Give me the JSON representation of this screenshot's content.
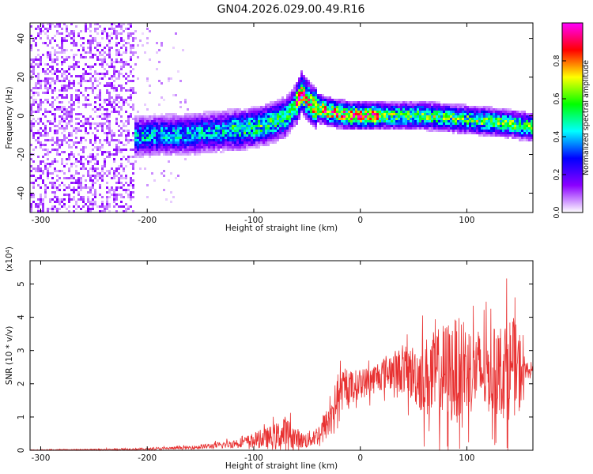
{
  "figure": {
    "title": "GN04.2026.029.00.49.R16"
  },
  "chart_data": [
    {
      "type": "heatmap",
      "title": "GN04.2026.029.00.49.R16",
      "xlabel": "Height of straight line (km)",
      "ylabel": "Frequency (Hz)",
      "xlim": [
        -310,
        162
      ],
      "ylim": [
        -50,
        48
      ],
      "x_ticks": [
        -300,
        -200,
        -100,
        0,
        100
      ],
      "x_tick_labels": [
        "-300",
        "-200",
        "-100",
        "0",
        "100"
      ],
      "y_ticks": [
        -40,
        -20,
        0,
        20,
        40
      ],
      "y_tick_labels": [
        "-40",
        "-20",
        "0",
        "20",
        "40"
      ],
      "colorbar": {
        "label": "Normalized spectral amplitude",
        "range": [
          0.0,
          1.0
        ],
        "ticks": [
          0.0,
          0.2,
          0.4,
          0.6,
          0.8
        ],
        "tick_labels": [
          "0.0",
          "0.2",
          "0.4",
          "0.6",
          "0.8"
        ],
        "colors": [
          "#ffffff",
          "#8b00ff",
          "#0000ff",
          "#00ffff",
          "#00ff00",
          "#ffff00",
          "#ff0000",
          "#ff00ff"
        ]
      },
      "ridge": {
        "x": [
          -210,
          -190,
          -170,
          -150,
          -130,
          -110,
          -90,
          -70,
          -60,
          -55,
          -45,
          -30,
          -10,
          0,
          20,
          40,
          60,
          80,
          100,
          120,
          140,
          160
        ],
        "y": [
          -11,
          -10,
          -10,
          -9,
          -8,
          -7,
          -5,
          -1,
          6,
          12,
          5,
          2,
          0,
          0,
          0,
          0,
          0,
          -1,
          -2,
          -3,
          -4,
          -6
        ]
      },
      "grid": false
    },
    {
      "type": "line",
      "xlabel": "Height of straight line (km)",
      "ylabel": "SNR (10 * v/v)",
      "y_multiplier": "(x10⁴)",
      "xlim": [
        -310,
        162
      ],
      "ylim": [
        0,
        5.7
      ],
      "x_ticks": [
        -300,
        -200,
        -100,
        0,
        100
      ],
      "x_tick_labels": [
        "-300",
        "-200",
        "-100",
        "0",
        "100"
      ],
      "y_ticks": [
        0,
        1,
        2,
        3,
        4,
        5
      ],
      "y_tick_labels": [
        "0",
        "1",
        "2",
        "3",
        "4",
        "5"
      ],
      "color": "#e83030",
      "envelope": {
        "x": [
          -310,
          -250,
          -200,
          -160,
          -130,
          -110,
          -90,
          -80,
          -70,
          -65,
          -55,
          -50,
          -40,
          -30,
          -25,
          -20,
          -10,
          0,
          10,
          20,
          30,
          40,
          50,
          60,
          70,
          80,
          90,
          100,
          110,
          120,
          130,
          140,
          150,
          155,
          162
        ],
        "mean": [
          0.01,
          0.02,
          0.04,
          0.08,
          0.15,
          0.25,
          0.35,
          0.4,
          0.5,
          0.45,
          0.3,
          0.3,
          0.45,
          0.85,
          1.3,
          1.7,
          1.9,
          2.0,
          2.1,
          2.3,
          2.4,
          2.4,
          2.3,
          2.2,
          2.2,
          2.3,
          2.4,
          2.5,
          2.4,
          2.3,
          2.4,
          2.5,
          2.4,
          2.4,
          2.4
        ],
        "noise": [
          0.01,
          0.02,
          0.03,
          0.05,
          0.1,
          0.15,
          0.3,
          0.4,
          0.55,
          0.4,
          0.25,
          0.25,
          0.3,
          0.5,
          0.6,
          0.6,
          0.5,
          0.45,
          0.45,
          0.5,
          0.6,
          0.7,
          0.9,
          1.2,
          1.4,
          1.6,
          1.6,
          1.4,
          1.3,
          1.2,
          1.4,
          1.6,
          1.2,
          0.3,
          0.1
        ]
      },
      "grid": false
    }
  ]
}
